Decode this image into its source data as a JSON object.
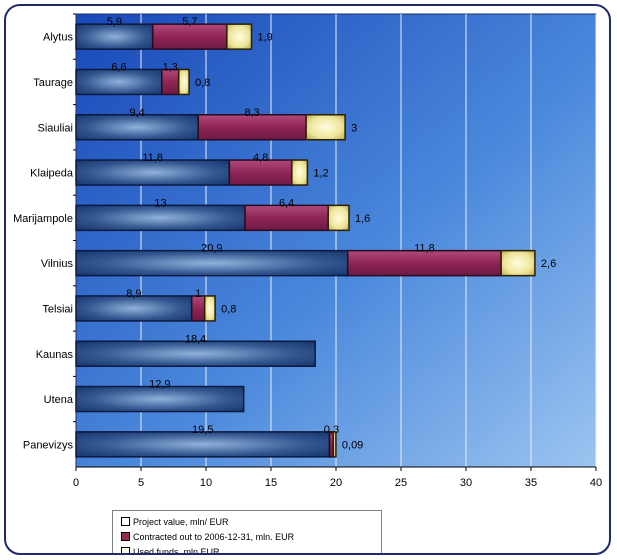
{
  "chart_data": {
    "type": "bar",
    "orientation": "horizontal",
    "stacked": true,
    "categories": [
      "Alytus",
      "Taurage",
      "Siauliai",
      "Klaipeda",
      "Marijampole",
      "Vilnius",
      "Telsiai",
      "Kaunas",
      "Utena",
      "Panevizys"
    ],
    "series": [
      {
        "name": "Project value, mln/ EUR",
        "values": [
          5.9,
          6.6,
          9.4,
          11.8,
          13,
          20.9,
          8.9,
          18.4,
          12.9,
          19.5
        ],
        "labels": [
          "5,9",
          "6,6",
          "9,4",
          "11,8",
          "13",
          "20,9",
          "8,9",
          "18,4",
          "12,9",
          "19,5"
        ]
      },
      {
        "name": "Contracted out to 2006-12-31, mln. EUR",
        "values": [
          5.7,
          1.3,
          8.3,
          4.8,
          6.4,
          11.8,
          1,
          null,
          null,
          0.3
        ],
        "labels": [
          "5,7",
          "1,3",
          "8,3",
          "4,8",
          "6,4",
          "11,8",
          "1",
          "",
          "",
          "0,3"
        ]
      },
      {
        "name": "Used funds, mln EUR",
        "values": [
          1.9,
          0.8,
          3,
          1.2,
          1.6,
          2.6,
          0.8,
          null,
          null,
          0.09
        ],
        "labels": [
          "1,9",
          "0,8",
          "3",
          "1,2",
          "1,6",
          "2,6",
          "0,8",
          "",
          "",
          "0,09"
        ]
      }
    ],
    "xlim": [
      0,
      40
    ],
    "xticks": [
      "0",
      "5",
      "10",
      "15",
      "20",
      "25",
      "30",
      "35",
      "40"
    ],
    "grid": true,
    "legend_position": "bottom-left",
    "colors": {
      "project": "#1a3a78",
      "contracted": "#9a2a5a",
      "used": "#f0e8a0",
      "background": "#2f68c8"
    }
  }
}
